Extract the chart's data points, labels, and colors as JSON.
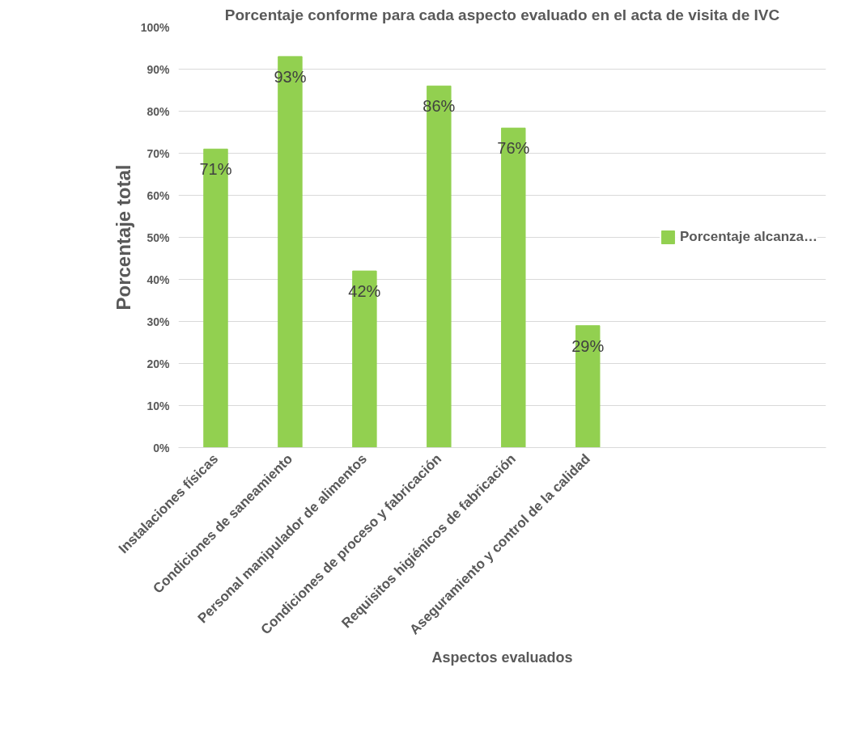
{
  "chart_data": {
    "type": "bar",
    "title": "Porcentaje conforme para cada aspecto evaluado en el acta de visita de IVC",
    "xlabel": "Aspectos evaluados",
    "ylabel": "Porcentaje total",
    "categories": [
      "Instalaciones físicas",
      "Condiciones de saneamiento",
      "Personal manipulador de alimentos",
      "Condiciones de proceso y fabricación",
      "Requisitos higiénicos de fabricación",
      "Aseguramiento y control de la calidad"
    ],
    "series": [
      {
        "name": "Porcentaje alcanza…",
        "color": "#92d050",
        "values": [
          71,
          93,
          42,
          86,
          76,
          29
        ],
        "value_labels": [
          "71%",
          "93%",
          "42%",
          "86%",
          "76%",
          "29%"
        ]
      }
    ],
    "ylim": [
      0,
      100
    ],
    "yticks": [
      {
        "value": 0,
        "label": "0%"
      },
      {
        "value": 10,
        "label": "10%"
      },
      {
        "value": 20,
        "label": "20%"
      },
      {
        "value": 30,
        "label": "30%"
      },
      {
        "value": 40,
        "label": "40%"
      },
      {
        "value": 50,
        "label": "50%"
      },
      {
        "value": 60,
        "label": "60%"
      },
      {
        "value": 70,
        "label": "70%"
      },
      {
        "value": 80,
        "label": "80%"
      },
      {
        "value": 90,
        "label": "90%"
      },
      {
        "value": 100,
        "label": "100%"
      }
    ],
    "grid": "y",
    "legend": "right"
  }
}
